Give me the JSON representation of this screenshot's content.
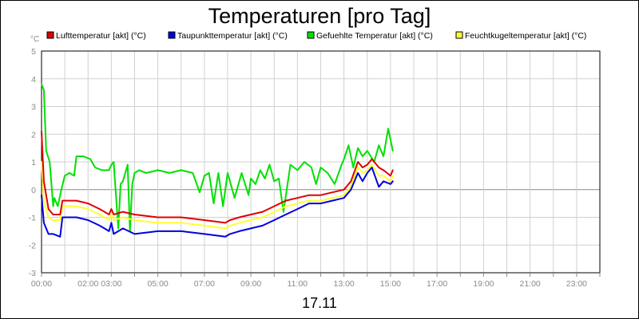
{
  "chart_data": {
    "type": "line",
    "title": "Temperaturen [pro Tag]",
    "ylabel": "°C",
    "xlabel": "17.11",
    "ylim": [
      -3,
      5
    ],
    "xlim": [
      0,
      24
    ],
    "y_ticks": [
      "-3",
      "-2",
      "-1",
      "0",
      "1",
      "2",
      "3",
      "4",
      "5"
    ],
    "x_ticks": [
      {
        "h": 0,
        "label": "00:00"
      },
      {
        "h": 2,
        "label": "02:00"
      },
      {
        "h": 3,
        "label": "03:00"
      },
      {
        "h": 5,
        "label": "05:00"
      },
      {
        "h": 7,
        "label": "07:00"
      },
      {
        "h": 9,
        "label": "09:00"
      },
      {
        "h": 11,
        "label": "11:00"
      },
      {
        "h": 13,
        "label": "13:00"
      },
      {
        "h": 15,
        "label": "15:00"
      },
      {
        "h": 17,
        "label": "17:00"
      },
      {
        "h": 19,
        "label": "19:00"
      },
      {
        "h": 21,
        "label": "21:00"
      },
      {
        "h": 23,
        "label": "23:00"
      }
    ],
    "grid": true,
    "legend_position": "top",
    "series": [
      {
        "name": "Lufttemperatur [akt] (°C)",
        "color": "#e00000",
        "x": [
          0,
          0.1,
          0.3,
          0.5,
          0.8,
          0.9,
          1.0,
          1.5,
          2.0,
          2.5,
          2.9,
          3.0,
          3.1,
          3.5,
          4.0,
          5.0,
          6.0,
          7.0,
          7.9,
          8.1,
          8.5,
          9.0,
          9.5,
          10.0,
          10.5,
          11.0,
          11.5,
          12.0,
          12.5,
          13.0,
          13.3,
          13.6,
          13.8,
          14.0,
          14.2,
          14.5,
          14.7,
          15.0,
          15.1
        ],
        "y": [
          2.1,
          0.3,
          -0.7,
          -0.9,
          -0.9,
          -0.4,
          -0.4,
          -0.4,
          -0.5,
          -0.7,
          -0.9,
          -0.7,
          -0.9,
          -0.8,
          -0.9,
          -1.0,
          -1.0,
          -1.1,
          -1.2,
          -1.1,
          -1.0,
          -0.9,
          -0.8,
          -0.6,
          -0.4,
          -0.3,
          -0.2,
          -0.2,
          -0.1,
          0.0,
          0.3,
          1.0,
          0.8,
          0.9,
          1.1,
          0.8,
          0.7,
          0.5,
          0.7
        ]
      },
      {
        "name": "Taupunkttemperatur [akt] (°C)",
        "color": "#0000e0",
        "x": [
          0,
          0.1,
          0.3,
          0.5,
          0.8,
          0.9,
          1.0,
          1.5,
          2.0,
          2.5,
          2.9,
          3.0,
          3.1,
          3.5,
          4.0,
          5.0,
          6.0,
          7.0,
          7.9,
          8.1,
          8.5,
          9.0,
          9.5,
          10.0,
          10.5,
          11.0,
          11.5,
          12.0,
          12.5,
          13.0,
          13.3,
          13.6,
          13.8,
          14.0,
          14.2,
          14.5,
          14.7,
          15.0,
          15.1
        ],
        "y": [
          -0.2,
          -1.2,
          -1.6,
          -1.6,
          -1.7,
          -1.0,
          -1.0,
          -1.0,
          -1.1,
          -1.3,
          -1.5,
          -1.2,
          -1.6,
          -1.4,
          -1.6,
          -1.5,
          -1.5,
          -1.6,
          -1.7,
          -1.6,
          -1.5,
          -1.4,
          -1.3,
          -1.1,
          -0.9,
          -0.7,
          -0.5,
          -0.5,
          -0.4,
          -0.3,
          0.0,
          0.6,
          0.3,
          0.6,
          0.8,
          0.1,
          0.3,
          0.2,
          0.3
        ]
      },
      {
        "name": "Gefuehlte Temperatur [akt] (°C)",
        "color": "#00e000",
        "x": [
          0,
          0.1,
          0.2,
          0.35,
          0.5,
          0.55,
          0.7,
          0.85,
          1.0,
          1.2,
          1.4,
          1.5,
          1.8,
          2.1,
          2.3,
          2.6,
          2.9,
          3.0,
          3.1,
          3.3,
          3.4,
          3.5,
          3.7,
          3.8,
          3.9,
          4.0,
          4.2,
          4.5,
          5.0,
          5.5,
          6.0,
          6.5,
          6.8,
          7.0,
          7.2,
          7.4,
          7.6,
          7.8,
          8.0,
          8.3,
          8.6,
          8.9,
          9.0,
          9.2,
          9.4,
          9.6,
          9.8,
          10.0,
          10.2,
          10.4,
          10.7,
          11.0,
          11.3,
          11.6,
          11.8,
          12.0,
          12.3,
          12.6,
          12.9,
          13.0,
          13.2,
          13.4,
          13.6,
          13.8,
          14.0,
          14.3,
          14.5,
          14.7,
          14.9,
          15.0,
          15.1
        ],
        "y": [
          3.8,
          3.6,
          1.4,
          1.0,
          -0.6,
          -0.3,
          -0.6,
          0.0,
          0.5,
          0.6,
          0.5,
          1.2,
          1.2,
          1.1,
          0.8,
          0.7,
          0.7,
          0.9,
          1.0,
          -1.4,
          0.2,
          0.3,
          0.9,
          -1.5,
          0.2,
          0.6,
          0.7,
          0.6,
          0.7,
          0.6,
          0.7,
          0.6,
          -0.1,
          0.5,
          0.6,
          -0.5,
          0.6,
          -0.6,
          0.6,
          -0.3,
          0.6,
          -0.2,
          0.4,
          0.2,
          0.7,
          0.4,
          0.9,
          0.3,
          0.4,
          -0.8,
          0.9,
          0.7,
          1.0,
          0.8,
          0.2,
          0.8,
          0.6,
          0.2,
          0.9,
          1.1,
          1.6,
          0.8,
          1.5,
          1.2,
          1.4,
          1.0,
          1.6,
          1.2,
          2.2,
          1.8,
          1.4
        ]
      },
      {
        "name": "Feuchtkugeltemperatur [akt] (°C)",
        "color": "#ffff33",
        "x": [
          0,
          0.1,
          0.3,
          0.5,
          0.8,
          0.9,
          1.0,
          1.5,
          2.0,
          2.5,
          2.9,
          3.0,
          3.1,
          3.5,
          4.0,
          5.0,
          6.0,
          7.0,
          7.9,
          8.1,
          8.5,
          9.0,
          9.5,
          10.0,
          10.5,
          11.0,
          11.5,
          12.0,
          12.5,
          13.0,
          13.3,
          13.6,
          13.8,
          14.0,
          14.2,
          14.5,
          14.7,
          15.0,
          15.1
        ],
        "y": [
          1.0,
          -0.4,
          -1.0,
          -1.1,
          -1.1,
          -0.6,
          -0.6,
          -0.6,
          -0.7,
          -0.9,
          -1.1,
          -0.9,
          -1.1,
          -1.0,
          -1.1,
          -1.2,
          -1.2,
          -1.3,
          -1.4,
          -1.3,
          -1.2,
          -1.1,
          -1.0,
          -0.8,
          -0.6,
          -0.5,
          -0.4,
          -0.4,
          -0.3,
          -0.2,
          0.1,
          0.8,
          0.6,
          0.7,
          0.9,
          0.5,
          0.5,
          0.3,
          0.5
        ]
      }
    ]
  }
}
